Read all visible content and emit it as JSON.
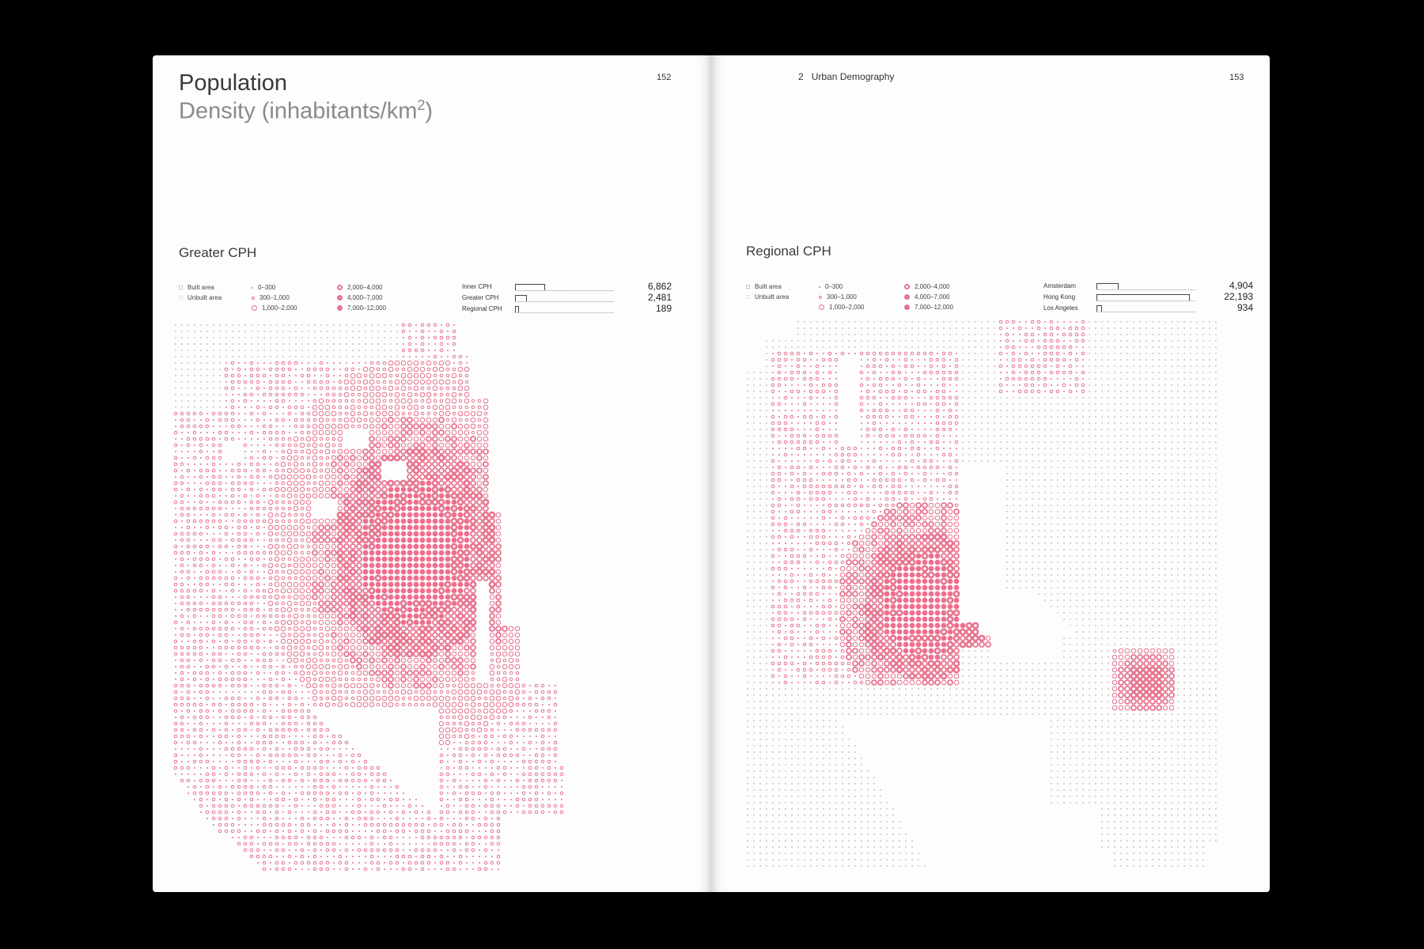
{
  "left_page": {
    "title": "Population",
    "subtitle_text": "Density (inhabitants/km",
    "subtitle_sup": "2",
    "subtitle_close": ")",
    "page_number": "152",
    "section_title": "Greater CPH",
    "legend": {
      "built": "Built area",
      "unbuilt": "Unbuilt area",
      "d1": "0–300",
      "d2": "300–1,000",
      "d3": "1,000–2,000",
      "d4": "2,000–4,000",
      "d5": "4,000–7,000",
      "d6": "7,000–12,000"
    },
    "comparison": [
      {
        "label": "Inner CPH",
        "value": "6,862",
        "num": 6862
      },
      {
        "label": "Greater CPH",
        "value": "2,481",
        "num": 2481
      },
      {
        "label": "Regional CPH",
        "value": "189",
        "num": 189
      }
    ]
  },
  "right_page": {
    "chapter_number": "2",
    "chapter_title": "Urban Demography",
    "page_number": "153",
    "section_title": "Regional CPH",
    "legend": {
      "built": "Built area",
      "unbuilt": "Unbuilt area",
      "d1": "0–300",
      "d2": "300–1,000",
      "d3": "1,000–2,000",
      "d4": "2,000–4,000",
      "d5": "4,000–7,000",
      "d6": "7,000–12,000"
    },
    "comparison": [
      {
        "label": "Amsterdam",
        "value": "4,904",
        "num": 4904
      },
      {
        "label": "Hong Kong",
        "value": "22,193",
        "num": 22193
      },
      {
        "label": "Los Angeles",
        "value": "934",
        "num": 934
      }
    ]
  },
  "colors": {
    "dot": "#e8738f",
    "dot_dense": "#f06e8e",
    "grey": "#b8b8b8",
    "paper": "#fdfdfd"
  }
}
